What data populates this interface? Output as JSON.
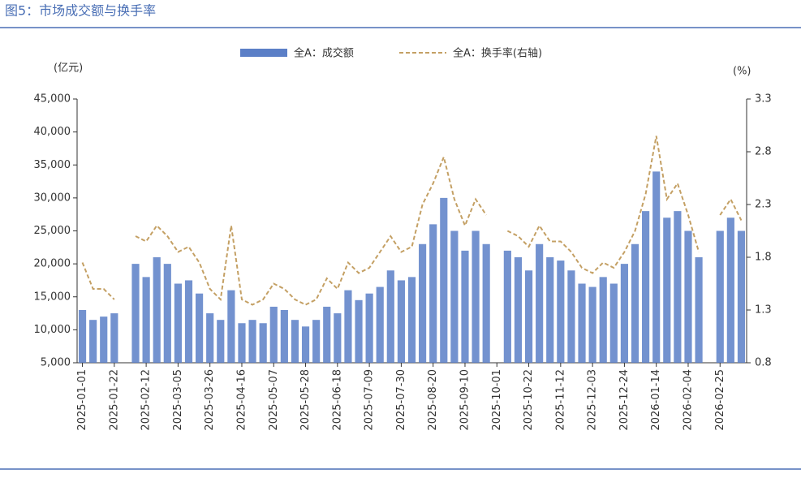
{
  "chart_data": {
    "type": "bar",
    "title": "图5：市场成交额与换手率",
    "y_label": "(亿元)",
    "y2_label": "(%)",
    "categories": [
      "2025-01-01",
      null,
      null,
      "2025-01-22",
      null,
      null,
      "2025-02-12",
      null,
      null,
      "2025-03-05",
      null,
      null,
      "2025-03-26",
      null,
      null,
      "2025-04-16",
      null,
      null,
      "2025-05-07",
      null,
      null,
      "2025-05-28",
      null,
      null,
      "2025-06-18",
      null,
      null,
      "2025-07-09",
      null,
      null,
      "2025-07-30",
      null,
      null,
      "2025-08-20",
      null,
      null,
      "2025-09-10",
      null,
      null,
      "2025-10-01",
      null,
      null,
      "2025-10-22",
      null,
      null,
      "2025-11-12",
      null,
      null,
      "2025-12-03",
      null,
      null,
      "2025-12-24",
      null,
      null,
      "2026-01-14",
      null,
      null,
      "2026-02-04",
      null,
      null,
      "2026-02-25",
      null,
      null
    ],
    "series": [
      {
        "name": "全A：成交额",
        "type": "bar",
        "color": "#5b7fc7",
        "values": [
          13000,
          11500,
          12000,
          12500,
          null,
          20000,
          18000,
          21000,
          20000,
          17000,
          17500,
          15500,
          12500,
          11500,
          16000,
          11000,
          11500,
          11000,
          13500,
          13000,
          11500,
          10500,
          11500,
          13500,
          12500,
          16000,
          14500,
          15500,
          16500,
          19000,
          17500,
          18000,
          23000,
          26000,
          30000,
          25000,
          22000,
          25000,
          23000,
          null,
          22000,
          21000,
          19000,
          23000,
          21000,
          20500,
          19000,
          17000,
          16500,
          18000,
          17000,
          20000,
          23000,
          28000,
          34000,
          27000,
          28000,
          25000,
          21000,
          null,
          25000,
          27000,
          25000
        ]
      },
      {
        "name": "全A：换手率(右轴)",
        "type": "line",
        "axis": "y2",
        "color": "#c4a064",
        "values": [
          1.75,
          1.5,
          1.5,
          1.4,
          null,
          2.0,
          1.95,
          2.1,
          2.0,
          1.85,
          1.9,
          1.75,
          1.5,
          1.4,
          2.1,
          1.4,
          1.35,
          1.4,
          1.55,
          1.5,
          1.4,
          1.35,
          1.4,
          1.6,
          1.5,
          1.75,
          1.65,
          1.7,
          1.85,
          2.0,
          1.85,
          1.9,
          2.3,
          2.5,
          2.75,
          2.35,
          2.1,
          2.35,
          2.2,
          null,
          2.05,
          2.0,
          1.9,
          2.1,
          1.95,
          1.95,
          1.85,
          1.7,
          1.65,
          1.75,
          1.7,
          1.85,
          2.05,
          2.4,
          2.95,
          2.35,
          2.5,
          2.2,
          1.85,
          null,
          2.2,
          2.35,
          2.15
        ]
      }
    ],
    "ylim": [
      5000,
      45000
    ],
    "yticks": [
      {
        "value": 5000,
        "label": "5,000"
      },
      {
        "value": 10000,
        "label": "10,000"
      },
      {
        "value": 15000,
        "label": "15,000"
      },
      {
        "value": 20000,
        "label": "20,000"
      },
      {
        "value": 25000,
        "label": "25,000"
      },
      {
        "value": 30000,
        "label": "30,000"
      },
      {
        "value": 35000,
        "label": "35,000"
      },
      {
        "value": 40000,
        "label": "40,000"
      },
      {
        "value": 45000,
        "label": "45,000"
      }
    ],
    "y2lim": [
      0.8,
      3.3
    ],
    "y2ticks": [
      0.8,
      1.3,
      1.8,
      2.3,
      2.8,
      3.3
    ],
    "legend": "top"
  }
}
